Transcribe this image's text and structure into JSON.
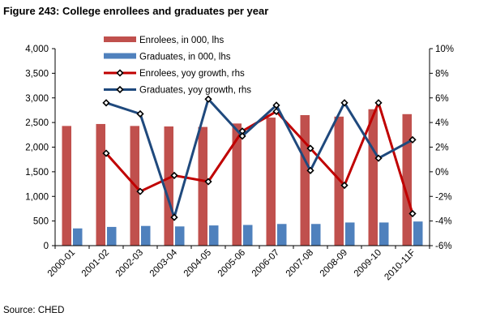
{
  "figure_title": "Figure 243: College enrollees and graduates per year",
  "source": "Source: CHED",
  "colors": {
    "enrolees_bar": "#C0504D",
    "graduates_bar": "#4F81BD",
    "enrolees_line": "#C00000",
    "graduates_line": "#1F497D",
    "marker_fill": "#FFFFFF",
    "marker_stroke": "#000000"
  },
  "chart_data": {
    "type": "bar",
    "title": "Figure 243: College enrollees and graduates per year",
    "categories": [
      "2000-01",
      "2001-02",
      "2002-03",
      "2003-04",
      "2004-05",
      "2005-06",
      "2006-07",
      "2007-08",
      "2008-09",
      "2009-10",
      "2010-11F"
    ],
    "series": [
      {
        "name": "Enrolees, in 000, lhs",
        "type": "bar",
        "axis": "left",
        "values": [
          2430,
          2470,
          2430,
          2420,
          2410,
          2480,
          2600,
          2650,
          2620,
          2770,
          2670
        ]
      },
      {
        "name": "Graduates, in 000, lhs",
        "type": "bar",
        "axis": "left",
        "values": [
          350,
          380,
          400,
          390,
          410,
          420,
          440,
          440,
          470,
          470,
          490
        ]
      },
      {
        "name": "Enrolees, yoy growth, rhs",
        "type": "line",
        "axis": "right",
        "marker": "diamond",
        "x": [
          "2001-02",
          "2002-03",
          "2003-04",
          "2004-05",
          "2005-06",
          "2006-07",
          "2007-08",
          "2008-09",
          "2009-10",
          "2010-11F"
        ],
        "values": [
          1.5,
          -1.6,
          -0.3,
          -0.8,
          3.3,
          4.9,
          1.9,
          -1.1,
          5.6,
          -3.4
        ]
      },
      {
        "name": "Graduates, yoy growth, rhs",
        "type": "line",
        "axis": "right",
        "marker": "diamond",
        "x": [
          "2001-02",
          "2002-03",
          "2003-04",
          "2004-05",
          "2005-06",
          "2006-07",
          "2007-08",
          "2008-09",
          "2009-10",
          "2010-11F"
        ],
        "values": [
          5.6,
          4.7,
          -3.7,
          5.9,
          2.9,
          5.4,
          0.1,
          5.6,
          1.1,
          2.6
        ]
      }
    ],
    "y_left": {
      "ylim": [
        0,
        4000
      ],
      "ticks": [
        0,
        500,
        1000,
        1500,
        2000,
        2500,
        3000,
        3500,
        4000
      ],
      "tick_labels": [
        "0",
        "500",
        "1,000",
        "1,500",
        "2,000",
        "2,500",
        "3,000",
        "3,500",
        "4,000"
      ]
    },
    "y_right": {
      "ylim": [
        -6,
        10
      ],
      "ticks": [
        -6,
        -4,
        -2,
        0,
        2,
        4,
        6,
        8,
        10
      ],
      "tick_labels": [
        "-6%",
        "-4%",
        "-2%",
        "0%",
        "2%",
        "4%",
        "6%",
        "8%",
        "10%"
      ]
    },
    "legend": {
      "placement": "top-center",
      "entries": [
        "Enrolees, in 000, lhs",
        "Graduates, in 000, lhs",
        "Enrolees, yoy growth, rhs",
        "Graduates, yoy growth, rhs"
      ]
    },
    "grid": false,
    "xlabel": "",
    "ylabel": ""
  }
}
